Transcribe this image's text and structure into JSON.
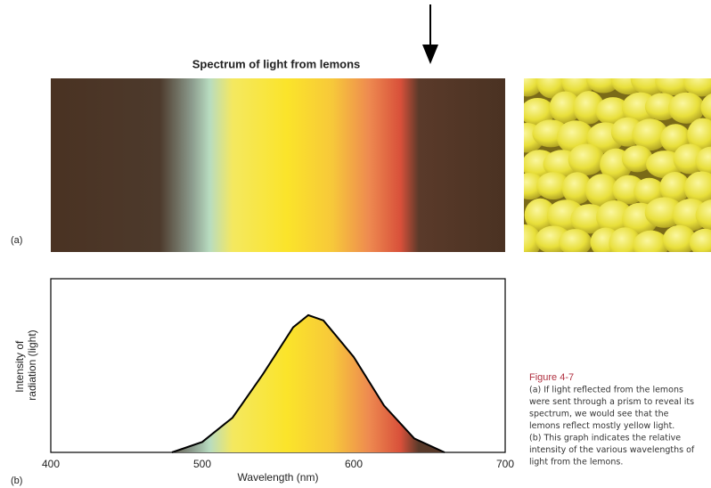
{
  "chart_data": {
    "type": "line",
    "spectrum_title": "Spectrum of light from lemons",
    "panel_a": "(a)",
    "panel_b": "(b)",
    "x_label": "Wavelength (nm)",
    "y_label": [
      "Intensity of",
      "radiation (light)"
    ],
    "x": [
      480,
      500,
      520,
      540,
      560,
      570,
      580,
      600,
      620,
      640,
      660
    ],
    "series": [
      {
        "color": "#000000",
        "values": [
          0,
          0.06,
          0.2,
          0.45,
          0.72,
          0.79,
          0.76,
          0.55,
          0.27,
          0.08,
          0
        ]
      }
    ],
    "xlim": [
      400,
      700
    ],
    "xticks": [
      400,
      500,
      600,
      700
    ],
    "ylim": [
      0,
      1
    ]
  },
  "caption": {
    "title": "Figure 4-7",
    "lines": [
      "(a) If light reflected from the lemons",
      "were sent through a prism to reveal its",
      "spectrum, we would see that the",
      "lemons reflect mostly yellow light.",
      "(b) This graph indicates the relative",
      "intensity of the various wavelengths of",
      "light from the lemons."
    ]
  }
}
